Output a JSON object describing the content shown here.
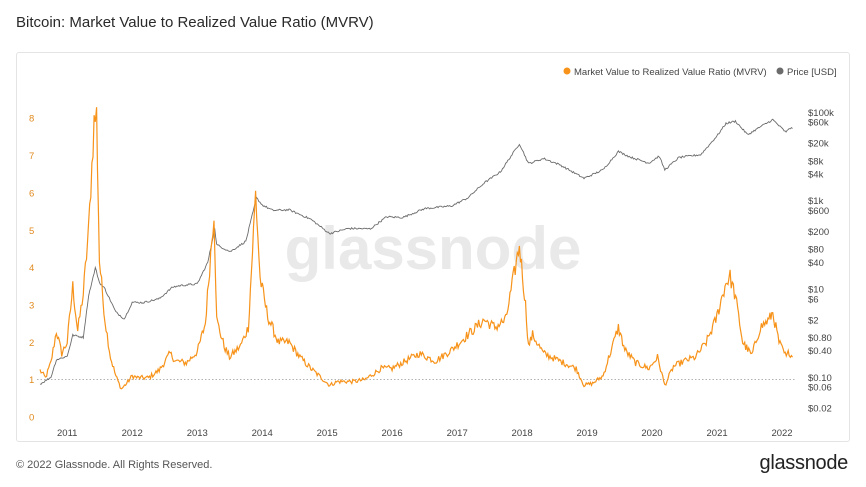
{
  "title": "Bitcoin: Market Value to Realized Value Ratio (MVRV)",
  "footer": {
    "copyright": "© 2022 Glassnode. All Rights Reserved.",
    "logo": "glassnode"
  },
  "watermark": "glassnode",
  "colors": {
    "mvrv": "#f7931a",
    "price": "#6b6b6b",
    "left_axis": "#e08a1e"
  },
  "chart_data": {
    "type": "line",
    "legend_position": "top-right",
    "grid": false,
    "series": [
      {
        "name": "Market Value to Realized Value Ratio (MVRV)",
        "axis": "left",
        "points": [
          [
            "2010-08-01",
            1.25
          ],
          [
            "2010-09-01",
            1.05
          ],
          [
            "2010-10-01",
            1.45
          ],
          [
            "2010-11-01",
            2.3
          ],
          [
            "2010-12-01",
            1.7
          ],
          [
            "2011-01-01",
            2.0
          ],
          [
            "2011-02-01",
            3.5
          ],
          [
            "2011-03-01",
            2.3
          ],
          [
            "2011-04-01",
            3.3
          ],
          [
            "2011-05-01",
            5.0
          ],
          [
            "2011-06-01",
            7.9
          ],
          [
            "2011-06-15",
            8.1
          ],
          [
            "2011-07-01",
            4.2
          ],
          [
            "2011-08-01",
            2.6
          ],
          [
            "2011-09-01",
            1.6
          ],
          [
            "2011-10-01",
            1.1
          ],
          [
            "2011-11-01",
            0.75
          ],
          [
            "2011-12-01",
            0.9
          ],
          [
            "2012-01-01",
            1.1
          ],
          [
            "2012-02-01",
            1.05
          ],
          [
            "2012-04-01",
            1.05
          ],
          [
            "2012-06-01",
            1.25
          ],
          [
            "2012-08-01",
            1.7
          ],
          [
            "2012-09-01",
            1.5
          ],
          [
            "2012-11-01",
            1.45
          ],
          [
            "2013-01-01",
            1.75
          ],
          [
            "2013-02-15",
            2.5
          ],
          [
            "2013-04-05",
            5.5
          ],
          [
            "2013-04-20",
            2.6
          ],
          [
            "2013-06-01",
            1.9
          ],
          [
            "2013-07-01",
            1.6
          ],
          [
            "2013-09-01",
            1.9
          ],
          [
            "2013-10-15",
            2.4
          ],
          [
            "2013-11-25",
            6.0
          ],
          [
            "2013-12-20",
            3.7
          ],
          [
            "2014-02-01",
            2.7
          ],
          [
            "2014-04-01",
            2.0
          ],
          [
            "2014-06-01",
            2.0
          ],
          [
            "2014-08-01",
            1.6
          ],
          [
            "2014-10-01",
            1.3
          ],
          [
            "2015-01-15",
            0.85
          ],
          [
            "2015-03-01",
            0.95
          ],
          [
            "2015-06-01",
            0.95
          ],
          [
            "2015-08-01",
            1.0
          ],
          [
            "2015-11-01",
            1.3
          ],
          [
            "2016-01-01",
            1.3
          ],
          [
            "2016-06-01",
            1.7
          ],
          [
            "2016-09-01",
            1.5
          ],
          [
            "2016-12-01",
            1.8
          ],
          [
            "2017-03-01",
            2.2
          ],
          [
            "2017-06-01",
            2.6
          ],
          [
            "2017-08-01",
            2.4
          ],
          [
            "2017-10-01",
            2.6
          ],
          [
            "2017-12-17",
            4.6
          ],
          [
            "2018-01-20",
            3.0
          ],
          [
            "2018-02-06",
            1.9
          ],
          [
            "2018-03-01",
            2.2
          ],
          [
            "2018-05-01",
            1.7
          ],
          [
            "2018-08-01",
            1.5
          ],
          [
            "2018-11-01",
            1.3
          ],
          [
            "2018-12-15",
            0.85
          ],
          [
            "2019-02-01",
            0.9
          ],
          [
            "2019-04-01",
            1.1
          ],
          [
            "2019-06-26",
            2.4
          ],
          [
            "2019-08-01",
            1.8
          ],
          [
            "2019-10-01",
            1.45
          ],
          [
            "2019-12-15",
            1.3
          ],
          [
            "2020-02-01",
            1.6
          ],
          [
            "2020-03-13",
            0.85
          ],
          [
            "2020-05-01",
            1.35
          ],
          [
            "2020-07-01",
            1.5
          ],
          [
            "2020-09-01",
            1.6
          ],
          [
            "2020-11-01",
            2.0
          ],
          [
            "2020-12-25",
            2.6
          ],
          [
            "2021-02-20",
            3.6
          ],
          [
            "2021-03-15",
            3.75
          ],
          [
            "2021-04-15",
            3.2
          ],
          [
            "2021-05-25",
            2.0
          ],
          [
            "2021-07-15",
            1.65
          ],
          [
            "2021-09-01",
            2.4
          ],
          [
            "2021-10-20",
            2.6
          ],
          [
            "2021-11-10",
            2.8
          ],
          [
            "2021-12-15",
            2.0
          ],
          [
            "2022-01-25",
            1.6
          ],
          [
            "2022-02-10",
            1.75
          ],
          [
            "2022-03-01",
            1.6
          ]
        ]
      },
      {
        "name": "Price [USD]",
        "axis": "right",
        "scale": "log",
        "points": [
          [
            "2010-08-01",
            0.07
          ],
          [
            "2010-10-01",
            0.1
          ],
          [
            "2010-11-01",
            0.25
          ],
          [
            "2011-01-01",
            0.3
          ],
          [
            "2011-02-01",
            0.9
          ],
          [
            "2011-04-01",
            0.8
          ],
          [
            "2011-05-01",
            7
          ],
          [
            "2011-06-08",
            30
          ],
          [
            "2011-07-01",
            14
          ],
          [
            "2011-08-01",
            10
          ],
          [
            "2011-10-01",
            3
          ],
          [
            "2011-11-18",
            2.1
          ],
          [
            "2012-01-01",
            5
          ],
          [
            "2012-03-01",
            4.9
          ],
          [
            "2012-06-01",
            6
          ],
          [
            "2012-08-15",
            11
          ],
          [
            "2012-10-01",
            12
          ],
          [
            "2013-01-01",
            13
          ],
          [
            "2013-03-01",
            40
          ],
          [
            "2013-04-09",
            230
          ],
          [
            "2013-04-20",
            100
          ],
          [
            "2013-07-05",
            70
          ],
          [
            "2013-10-01",
            120
          ],
          [
            "2013-11-30",
            1150
          ],
          [
            "2014-01-01",
            800
          ],
          [
            "2014-03-01",
            600
          ],
          [
            "2014-06-01",
            620
          ],
          [
            "2014-10-01",
            380
          ],
          [
            "2015-01-14",
            180
          ],
          [
            "2015-05-01",
            235
          ],
          [
            "2015-09-01",
            230
          ],
          [
            "2015-12-01",
            430
          ],
          [
            "2016-03-01",
            415
          ],
          [
            "2016-07-01",
            660
          ],
          [
            "2016-12-01",
            760
          ],
          [
            "2017-03-01",
            1150
          ],
          [
            "2017-06-01",
            2500
          ],
          [
            "2017-09-01",
            4500
          ],
          [
            "2017-12-17",
            19500
          ],
          [
            "2018-02-06",
            6900
          ],
          [
            "2018-05-01",
            9000
          ],
          [
            "2018-08-01",
            6500
          ],
          [
            "2018-12-15",
            3200
          ],
          [
            "2019-04-01",
            5000
          ],
          [
            "2019-06-26",
            13000
          ],
          [
            "2019-09-01",
            9700
          ],
          [
            "2019-12-15",
            7100
          ],
          [
            "2020-02-10",
            10200
          ],
          [
            "2020-03-13",
            5000
          ],
          [
            "2020-06-01",
            9500
          ],
          [
            "2020-10-01",
            11000
          ],
          [
            "2020-12-31",
            29000
          ],
          [
            "2021-02-20",
            56000
          ],
          [
            "2021-04-14",
            63000
          ],
          [
            "2021-06-22",
            31000
          ],
          [
            "2021-09-01",
            47000
          ],
          [
            "2021-11-10",
            68000
          ],
          [
            "2022-01-24",
            35000
          ],
          [
            "2022-02-10",
            44000
          ],
          [
            "2022-03-01",
            43000
          ]
        ]
      }
    ],
    "x_ticks": [
      "2011",
      "2012",
      "2013",
      "2014",
      "2015",
      "2016",
      "2017",
      "2018",
      "2019",
      "2020",
      "2021",
      "2022"
    ],
    "left_ticks": [
      "0",
      "1",
      "2",
      "3",
      "4",
      "5",
      "6",
      "7",
      "8"
    ],
    "left_range": [
      0,
      8.3
    ],
    "right_ticks": [
      {
        "label": "$100k",
        "v": 100000
      },
      {
        "label": "$60k",
        "v": 60000
      },
      {
        "label": "$20k",
        "v": 20000
      },
      {
        "label": "$8k",
        "v": 8000
      },
      {
        "label": "$4k",
        "v": 4000
      },
      {
        "label": "$1k",
        "v": 1000
      },
      {
        "label": "$600",
        "v": 600
      },
      {
        "label": "$200",
        "v": 200
      },
      {
        "label": "$80",
        "v": 80
      },
      {
        "label": "$40",
        "v": 40
      },
      {
        "label": "$10",
        "v": 10
      },
      {
        "label": "$6",
        "v": 6
      },
      {
        "label": "$2",
        "v": 2
      },
      {
        "label": "$0.80",
        "v": 0.8
      },
      {
        "label": "$0.40",
        "v": 0.4
      },
      {
        "label": "$0.10",
        "v": 0.1
      },
      {
        "label": "$0.06",
        "v": 0.06
      },
      {
        "label": "$0.02",
        "v": 0.02
      }
    ],
    "right_range": [
      0.0126,
      132000
    ],
    "reference_line": 1
  }
}
